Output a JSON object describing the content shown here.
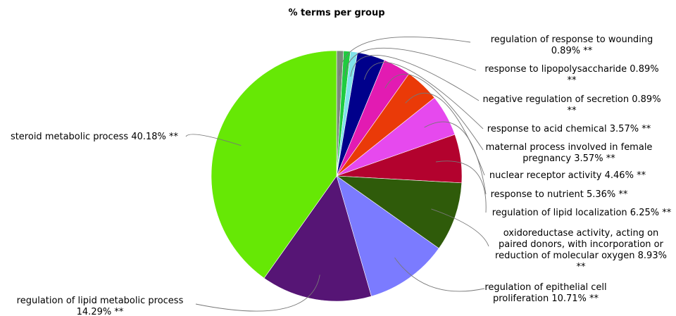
{
  "chart_data": {
    "type": "pie",
    "title": "% terms per group",
    "slices": [
      {
        "label": "regulation of response to wounding",
        "value": 0.89,
        "display": "0.89%",
        "stars": "**",
        "color": "#7a8a7a"
      },
      {
        "label": "response to lipopolysaccharide",
        "value": 0.89,
        "display": "0.89%",
        "stars": "**",
        "color": "#1fcc3f"
      },
      {
        "label": "negative regulation of secretion",
        "value": 0.89,
        "display": "0.89%",
        "stars": "**",
        "color": "#7fe3ea"
      },
      {
        "label": "response to acid chemical",
        "value": 3.57,
        "display": "3.57%",
        "stars": "**",
        "color": "#00008b"
      },
      {
        "label": "maternal process involved in female pregnancy",
        "value": 3.57,
        "display": "3.57%",
        "stars": "**",
        "color": "#e21bb2"
      },
      {
        "label": "nuclear receptor activity",
        "value": 4.46,
        "display": "4.46%",
        "stars": "**",
        "color": "#ea3a08"
      },
      {
        "label": "response to nutrient",
        "value": 5.36,
        "display": "5.36%",
        "stars": "**",
        "color": "#e649ee"
      },
      {
        "label": "regulation of lipid localization",
        "value": 6.25,
        "display": "6.25%",
        "stars": "**",
        "color": "#b3022e"
      },
      {
        "label": "oxidoreductase activity, acting on paired donors, with incorporation or reduction of molecular oxygen",
        "value": 8.93,
        "display": "8.93%",
        "stars": "**",
        "color": "#2f5b0a"
      },
      {
        "label": "regulation of epithelial cell proliferation",
        "value": 10.71,
        "display": "10.71%",
        "stars": "**",
        "color": "#7b7bff"
      },
      {
        "label": "regulation of lipid metabolic process",
        "value": 14.29,
        "display": "14.29%",
        "stars": "**",
        "color": "#561575"
      },
      {
        "label": "steroid metabolic process",
        "value": 40.18,
        "display": "40.18%",
        "stars": "**",
        "color": "#66e805"
      }
    ],
    "label_lines": [
      [
        "regulation of response to wounding",
        "0.89% **"
      ],
      [
        "response to lipopolysaccharide 0.89%",
        "**"
      ],
      [
        "negative regulation of secretion 0.89%",
        "**"
      ],
      [
        "response to acid chemical 3.57% **"
      ],
      [
        "maternal process involved in female",
        "pregnancy 3.57% **"
      ],
      [
        "nuclear receptor activity 4.46% **"
      ],
      [
        "response to nutrient 5.36% **"
      ],
      [
        "regulation of lipid localization 6.25% **"
      ],
      [
        "oxidoreductase activity, acting on",
        "paired donors, with incorporation or",
        "reduction of molecular oxygen 8.93%",
        "**"
      ],
      [
        "regulation of epithelial cell",
        "proliferation 10.71% **"
      ],
      [
        "regulation of lipid metabolic process",
        "14.29% **"
      ],
      [
        "steroid metabolic process 40.18% **"
      ]
    ],
    "label_side": [
      "right",
      "right",
      "right",
      "right",
      "right",
      "right",
      "right",
      "right",
      "right",
      "right",
      "left",
      "left"
    ],
    "start_angle": "top",
    "direction": "clockwise",
    "legend": "none"
  }
}
